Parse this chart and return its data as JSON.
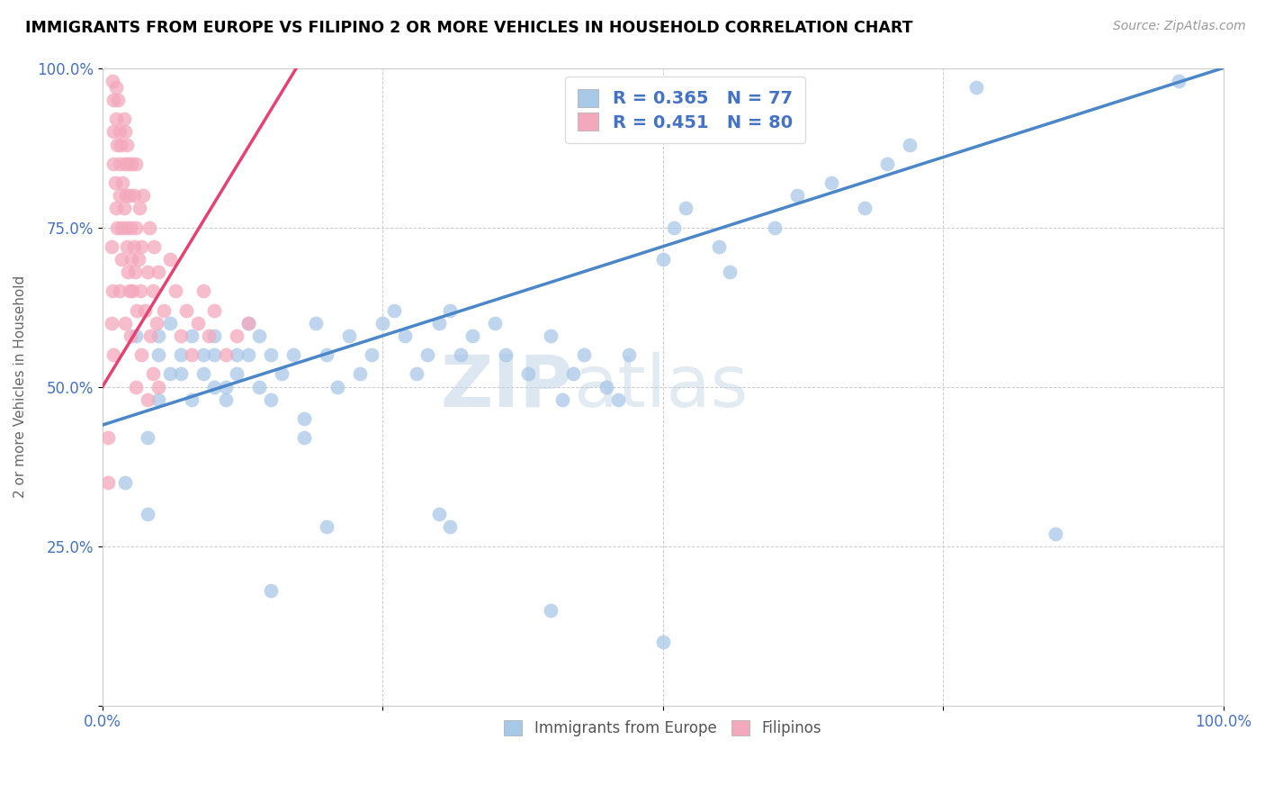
{
  "title": "IMMIGRANTS FROM EUROPE VS FILIPINO 2 OR MORE VEHICLES IN HOUSEHOLD CORRELATION CHART",
  "source": "Source: ZipAtlas.com",
  "ylabel": "2 or more Vehicles in Household",
  "xlim": [
    0,
    1.0
  ],
  "ylim": [
    0,
    1.0
  ],
  "xtick_labels": [
    "0.0%",
    "",
    "",
    "",
    "100.0%"
  ],
  "ytick_labels": [
    "",
    "25.0%",
    "50.0%",
    "75.0%",
    "100.0%"
  ],
  "blue_color": "#a8c8e8",
  "pink_color": "#f4a8bc",
  "blue_line_color": "#4a86c8",
  "pink_line_color": "#e84070",
  "legend_blue_label": "Immigrants from Europe",
  "legend_pink_label": "Filipinos",
  "legend_blue_R": "R = 0.365",
  "legend_blue_N": "N = 77",
  "legend_pink_R": "R = 0.451",
  "legend_pink_N": "N = 80",
  "watermark_zip": "ZIP",
  "watermark_atlas": "atlas",
  "blue_line_x0": 0.0,
  "blue_line_y0": 0.44,
  "blue_line_x1": 1.0,
  "blue_line_y1": 1.0,
  "pink_line_x0": 0.0,
  "pink_line_x1": 0.18,
  "pink_line_y0": 0.5,
  "pink_line_y1": 1.02,
  "blue_dots": [
    [
      0.02,
      0.35
    ],
    [
      0.03,
      0.58
    ],
    [
      0.04,
      0.3
    ],
    [
      0.04,
      0.42
    ],
    [
      0.05,
      0.55
    ],
    [
      0.05,
      0.48
    ],
    [
      0.05,
      0.58
    ],
    [
      0.06,
      0.52
    ],
    [
      0.06,
      0.6
    ],
    [
      0.07,
      0.55
    ],
    [
      0.07,
      0.52
    ],
    [
      0.08,
      0.58
    ],
    [
      0.08,
      0.48
    ],
    [
      0.09,
      0.55
    ],
    [
      0.09,
      0.52
    ],
    [
      0.1,
      0.5
    ],
    [
      0.1,
      0.55
    ],
    [
      0.1,
      0.58
    ],
    [
      0.11,
      0.5
    ],
    [
      0.11,
      0.48
    ],
    [
      0.12,
      0.55
    ],
    [
      0.12,
      0.52
    ],
    [
      0.13,
      0.6
    ],
    [
      0.13,
      0.55
    ],
    [
      0.14,
      0.58
    ],
    [
      0.14,
      0.5
    ],
    [
      0.15,
      0.55
    ],
    [
      0.15,
      0.48
    ],
    [
      0.16,
      0.52
    ],
    [
      0.17,
      0.55
    ],
    [
      0.18,
      0.42
    ],
    [
      0.18,
      0.45
    ],
    [
      0.19,
      0.6
    ],
    [
      0.2,
      0.55
    ],
    [
      0.21,
      0.5
    ],
    [
      0.22,
      0.58
    ],
    [
      0.23,
      0.52
    ],
    [
      0.24,
      0.55
    ],
    [
      0.25,
      0.6
    ],
    [
      0.26,
      0.62
    ],
    [
      0.27,
      0.58
    ],
    [
      0.28,
      0.52
    ],
    [
      0.29,
      0.55
    ],
    [
      0.3,
      0.6
    ],
    [
      0.31,
      0.62
    ],
    [
      0.32,
      0.55
    ],
    [
      0.33,
      0.58
    ],
    [
      0.35,
      0.6
    ],
    [
      0.36,
      0.55
    ],
    [
      0.38,
      0.52
    ],
    [
      0.4,
      0.58
    ],
    [
      0.41,
      0.48
    ],
    [
      0.42,
      0.52
    ],
    [
      0.43,
      0.55
    ],
    [
      0.45,
      0.5
    ],
    [
      0.46,
      0.48
    ],
    [
      0.47,
      0.55
    ],
    [
      0.5,
      0.7
    ],
    [
      0.51,
      0.75
    ],
    [
      0.52,
      0.78
    ],
    [
      0.55,
      0.72
    ],
    [
      0.56,
      0.68
    ],
    [
      0.6,
      0.75
    ],
    [
      0.62,
      0.8
    ],
    [
      0.65,
      0.82
    ],
    [
      0.68,
      0.78
    ],
    [
      0.7,
      0.85
    ],
    [
      0.72,
      0.88
    ],
    [
      0.15,
      0.18
    ],
    [
      0.2,
      0.28
    ],
    [
      0.3,
      0.3
    ],
    [
      0.31,
      0.28
    ],
    [
      0.4,
      0.15
    ],
    [
      0.5,
      0.1
    ],
    [
      0.85,
      0.27
    ],
    [
      0.96,
      0.98
    ],
    [
      0.78,
      0.97
    ]
  ],
  "pink_dots": [
    [
      0.005,
      0.42
    ],
    [
      0.008,
      0.6
    ],
    [
      0.008,
      0.72
    ],
    [
      0.009,
      0.65
    ],
    [
      0.01,
      0.85
    ],
    [
      0.01,
      0.9
    ],
    [
      0.01,
      0.95
    ],
    [
      0.011,
      0.82
    ],
    [
      0.012,
      0.78
    ],
    [
      0.012,
      0.92
    ],
    [
      0.013,
      0.88
    ],
    [
      0.013,
      0.75
    ],
    [
      0.014,
      0.95
    ],
    [
      0.015,
      0.9
    ],
    [
      0.015,
      0.85
    ],
    [
      0.015,
      0.8
    ],
    [
      0.016,
      0.88
    ],
    [
      0.017,
      0.75
    ],
    [
      0.017,
      0.7
    ],
    [
      0.018,
      0.82
    ],
    [
      0.019,
      0.78
    ],
    [
      0.019,
      0.92
    ],
    [
      0.02,
      0.85
    ],
    [
      0.02,
      0.9
    ],
    [
      0.021,
      0.8
    ],
    [
      0.021,
      0.75
    ],
    [
      0.022,
      0.88
    ],
    [
      0.022,
      0.72
    ],
    [
      0.023,
      0.85
    ],
    [
      0.023,
      0.68
    ],
    [
      0.024,
      0.8
    ],
    [
      0.024,
      0.65
    ],
    [
      0.025,
      0.75
    ],
    [
      0.026,
      0.7
    ],
    [
      0.026,
      0.85
    ],
    [
      0.027,
      0.65
    ],
    [
      0.028,
      0.72
    ],
    [
      0.028,
      0.8
    ],
    [
      0.029,
      0.68
    ],
    [
      0.03,
      0.75
    ],
    [
      0.03,
      0.85
    ],
    [
      0.031,
      0.62
    ],
    [
      0.032,
      0.7
    ],
    [
      0.033,
      0.78
    ],
    [
      0.034,
      0.65
    ],
    [
      0.035,
      0.72
    ],
    [
      0.036,
      0.8
    ],
    [
      0.038,
      0.62
    ],
    [
      0.04,
      0.68
    ],
    [
      0.042,
      0.75
    ],
    [
      0.043,
      0.58
    ],
    [
      0.045,
      0.65
    ],
    [
      0.046,
      0.72
    ],
    [
      0.048,
      0.6
    ],
    [
      0.05,
      0.68
    ],
    [
      0.055,
      0.62
    ],
    [
      0.06,
      0.7
    ],
    [
      0.065,
      0.65
    ],
    [
      0.07,
      0.58
    ],
    [
      0.075,
      0.62
    ],
    [
      0.08,
      0.55
    ],
    [
      0.085,
      0.6
    ],
    [
      0.09,
      0.65
    ],
    [
      0.095,
      0.58
    ],
    [
      0.1,
      0.62
    ],
    [
      0.11,
      0.55
    ],
    [
      0.12,
      0.58
    ],
    [
      0.13,
      0.6
    ],
    [
      0.005,
      0.35
    ],
    [
      0.01,
      0.55
    ],
    [
      0.015,
      0.65
    ],
    [
      0.02,
      0.6
    ],
    [
      0.025,
      0.58
    ],
    [
      0.03,
      0.5
    ],
    [
      0.035,
      0.55
    ],
    [
      0.04,
      0.48
    ],
    [
      0.045,
      0.52
    ],
    [
      0.05,
      0.5
    ],
    [
      0.009,
      0.98
    ],
    [
      0.012,
      0.97
    ]
  ]
}
